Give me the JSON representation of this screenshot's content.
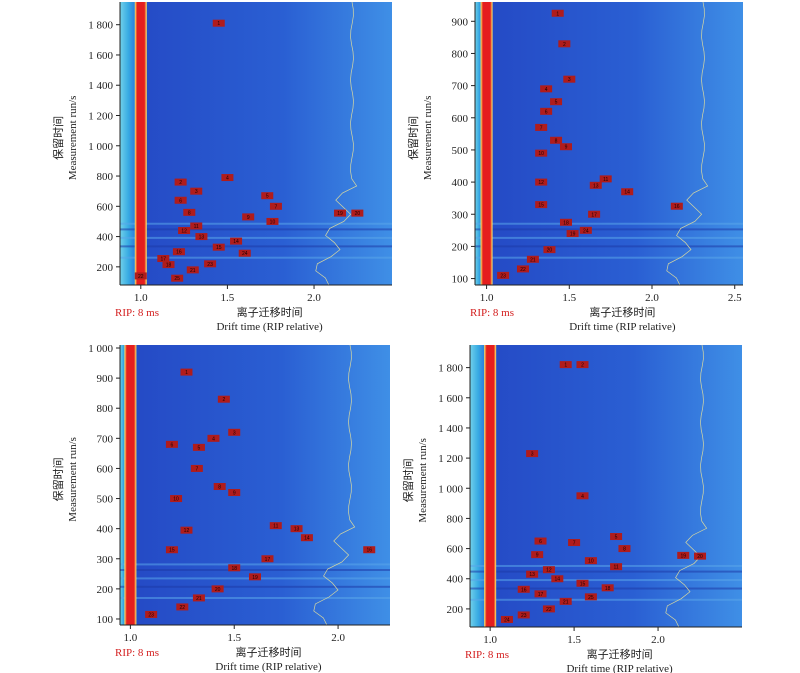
{
  "chart_data": [
    {
      "type": "heatmap",
      "xlabel_cn": "离子迁移时间",
      "xlabel_en": "Drift time (RIP relative)",
      "ylabel_cn": "保留时间",
      "ylabel_en": "Measurement run/s",
      "rip_label": "RIP: 8 ms",
      "x_range": [
        0.88,
        2.45
      ],
      "y_range": [
        80,
        1950
      ],
      "x_ticks": [
        "1.0",
        "1.5",
        "2.0"
      ],
      "x_tick_values": [
        1.0,
        1.5,
        2.0
      ],
      "y_ticks": [
        "200",
        "400",
        "600",
        "800",
        "1 000",
        "1 200",
        "1 400",
        "1 600",
        "1 800"
      ],
      "y_tick_values": [
        200,
        400,
        600,
        800,
        1000,
        1200,
        1400,
        1600,
        1800
      ],
      "peaks": [
        {
          "label": "1",
          "x": 1.45,
          "y": 1810
        },
        {
          "label": "2",
          "x": 1.23,
          "y": 760
        },
        {
          "label": "3",
          "x": 1.32,
          "y": 700
        },
        {
          "label": "4",
          "x": 1.5,
          "y": 790
        },
        {
          "label": "5",
          "x": 1.73,
          "y": 670
        },
        {
          "label": "6",
          "x": 1.23,
          "y": 640
        },
        {
          "label": "7",
          "x": 1.78,
          "y": 600
        },
        {
          "label": "8",
          "x": 1.28,
          "y": 560
        },
        {
          "label": "9",
          "x": 1.62,
          "y": 530
        },
        {
          "label": "10",
          "x": 1.76,
          "y": 500
        },
        {
          "label": "11",
          "x": 1.32,
          "y": 470
        },
        {
          "label": "12",
          "x": 1.25,
          "y": 440
        },
        {
          "label": "13",
          "x": 1.35,
          "y": 400
        },
        {
          "label": "14",
          "x": 1.55,
          "y": 370
        },
        {
          "label": "15",
          "x": 1.45,
          "y": 330
        },
        {
          "label": "16",
          "x": 1.22,
          "y": 300
        },
        {
          "label": "17",
          "x": 1.13,
          "y": 255
        },
        {
          "label": "18",
          "x": 1.16,
          "y": 215
        },
        {
          "label": "19",
          "x": 2.15,
          "y": 555
        },
        {
          "label": "20",
          "x": 2.25,
          "y": 555
        },
        {
          "label": "21",
          "x": 1.3,
          "y": 180
        },
        {
          "label": "22",
          "x": 1.0,
          "y": 140
        },
        {
          "label": "23",
          "x": 1.4,
          "y": 220
        },
        {
          "label": "24",
          "x": 1.6,
          "y": 290
        },
        {
          "label": "25",
          "x": 1.21,
          "y": 125
        }
      ]
    },
    {
      "type": "heatmap",
      "xlabel_cn": "离子迁移时间",
      "xlabel_en": "Drift time (RIP relative)",
      "ylabel_cn": "保留时间",
      "ylabel_en": "Measurement run/s",
      "rip_label": "RIP: 8 ms",
      "x_range": [
        0.93,
        2.55
      ],
      "y_range": [
        80,
        960
      ],
      "x_ticks": [
        "1.0",
        "1.5",
        "2.0",
        "2.5"
      ],
      "x_tick_values": [
        1.0,
        1.5,
        2.0,
        2.5
      ],
      "y_ticks": [
        "100",
        "200",
        "300",
        "400",
        "500",
        "600",
        "700",
        "800",
        "900"
      ],
      "y_tick_values": [
        100,
        200,
        300,
        400,
        500,
        600,
        700,
        800,
        900
      ],
      "peaks": [
        {
          "label": "1",
          "x": 1.43,
          "y": 925
        },
        {
          "label": "2",
          "x": 1.47,
          "y": 830
        },
        {
          "label": "3",
          "x": 1.5,
          "y": 720
        },
        {
          "label": "4",
          "x": 1.36,
          "y": 690
        },
        {
          "label": "5",
          "x": 1.42,
          "y": 650
        },
        {
          "label": "6",
          "x": 1.36,
          "y": 620
        },
        {
          "label": "7",
          "x": 1.33,
          "y": 570
        },
        {
          "label": "8",
          "x": 1.42,
          "y": 530
        },
        {
          "label": "9",
          "x": 1.48,
          "y": 510
        },
        {
          "label": "10",
          "x": 1.33,
          "y": 490
        },
        {
          "label": "11",
          "x": 1.72,
          "y": 410
        },
        {
          "label": "12",
          "x": 1.33,
          "y": 400
        },
        {
          "label": "13",
          "x": 1.66,
          "y": 390
        },
        {
          "label": "14",
          "x": 1.85,
          "y": 370
        },
        {
          "label": "15",
          "x": 1.33,
          "y": 330
        },
        {
          "label": "16",
          "x": 2.15,
          "y": 325
        },
        {
          "label": "17",
          "x": 1.65,
          "y": 300
        },
        {
          "label": "18",
          "x": 1.48,
          "y": 275
        },
        {
          "label": "19",
          "x": 1.52,
          "y": 240
        },
        {
          "label": "20",
          "x": 1.38,
          "y": 190
        },
        {
          "label": "21",
          "x": 1.28,
          "y": 160
        },
        {
          "label": "22",
          "x": 1.22,
          "y": 130
        },
        {
          "label": "23",
          "x": 1.1,
          "y": 110
        },
        {
          "label": "24",
          "x": 1.6,
          "y": 250
        }
      ]
    },
    {
      "type": "heatmap",
      "xlabel_cn": "离子迁移时间",
      "xlabel_en": "Drift time (RIP relative)",
      "ylabel_cn": "保留时间",
      "ylabel_en": "Measurement run/s",
      "rip_label": "RIP: 8 ms",
      "x_range": [
        0.95,
        2.25
      ],
      "y_range": [
        80,
        1010
      ],
      "x_ticks": [
        "1.0",
        "1.5",
        "2.0"
      ],
      "x_tick_values": [
        1.0,
        1.5,
        2.0
      ],
      "y_ticks": [
        "100",
        "200",
        "300",
        "400",
        "500",
        "600",
        "700",
        "800",
        "900",
        "1 000"
      ],
      "y_tick_values": [
        100,
        200,
        300,
        400,
        500,
        600,
        700,
        800,
        900,
        1000
      ],
      "peaks": [
        {
          "label": "1",
          "x": 1.27,
          "y": 920
        },
        {
          "label": "2",
          "x": 1.45,
          "y": 830
        },
        {
          "label": "3",
          "x": 1.5,
          "y": 720
        },
        {
          "label": "4",
          "x": 1.4,
          "y": 700
        },
        {
          "label": "5",
          "x": 1.33,
          "y": 670
        },
        {
          "label": "6",
          "x": 1.2,
          "y": 680
        },
        {
          "label": "7",
          "x": 1.32,
          "y": 600
        },
        {
          "label": "8",
          "x": 1.43,
          "y": 540
        },
        {
          "label": "9",
          "x": 1.5,
          "y": 520
        },
        {
          "label": "10",
          "x": 1.22,
          "y": 500
        },
        {
          "label": "11",
          "x": 1.7,
          "y": 410
        },
        {
          "label": "12",
          "x": 1.27,
          "y": 395
        },
        {
          "label": "13",
          "x": 1.8,
          "y": 400
        },
        {
          "label": "14",
          "x": 1.85,
          "y": 370
        },
        {
          "label": "15",
          "x": 1.2,
          "y": 330
        },
        {
          "label": "16",
          "x": 2.15,
          "y": 330
        },
        {
          "label": "17",
          "x": 1.66,
          "y": 300
        },
        {
          "label": "18",
          "x": 1.5,
          "y": 270
        },
        {
          "label": "19",
          "x": 1.6,
          "y": 240
        },
        {
          "label": "20",
          "x": 1.42,
          "y": 200
        },
        {
          "label": "21",
          "x": 1.33,
          "y": 170
        },
        {
          "label": "22",
          "x": 1.25,
          "y": 140
        },
        {
          "label": "23",
          "x": 1.1,
          "y": 115
        }
      ]
    },
    {
      "type": "heatmap",
      "xlabel_cn": "离子迁移时间",
      "xlabel_en": "Drift time (RIP relative)",
      "ylabel_cn": "保留时间",
      "ylabel_en": "Measurement run/s",
      "rip_label": "RIP: 8 ms",
      "x_range": [
        0.88,
        2.5
      ],
      "y_range": [
        80,
        1950
      ],
      "x_ticks": [
        "1.0",
        "1.5",
        "2.0"
      ],
      "x_tick_values": [
        1.0,
        1.5,
        2.0
      ],
      "y_ticks": [
        "200",
        "400",
        "600",
        "800",
        "1 000",
        "1 200",
        "1 400",
        "1 600",
        "1 800"
      ],
      "y_tick_values": [
        200,
        400,
        600,
        800,
        1000,
        1200,
        1400,
        1600,
        1800
      ],
      "peaks": [
        {
          "label": "1",
          "x": 1.45,
          "y": 1820
        },
        {
          "label": "2",
          "x": 1.55,
          "y": 1820
        },
        {
          "label": "3",
          "x": 1.25,
          "y": 1230
        },
        {
          "label": "4",
          "x": 1.55,
          "y": 950
        },
        {
          "label": "5",
          "x": 1.75,
          "y": 680
        },
        {
          "label": "6",
          "x": 1.3,
          "y": 650
        },
        {
          "label": "7",
          "x": 1.5,
          "y": 640
        },
        {
          "label": "8",
          "x": 1.8,
          "y": 600
        },
        {
          "label": "9",
          "x": 1.28,
          "y": 560
        },
        {
          "label": "10",
          "x": 1.6,
          "y": 520
        },
        {
          "label": "11",
          "x": 1.75,
          "y": 480
        },
        {
          "label": "12",
          "x": 1.35,
          "y": 460
        },
        {
          "label": "13",
          "x": 1.25,
          "y": 430
        },
        {
          "label": "14",
          "x": 1.4,
          "y": 400
        },
        {
          "label": "15",
          "x": 1.55,
          "y": 370
        },
        {
          "label": "16",
          "x": 1.2,
          "y": 330
        },
        {
          "label": "17",
          "x": 1.3,
          "y": 300
        },
        {
          "label": "18",
          "x": 1.7,
          "y": 340
        },
        {
          "label": "19",
          "x": 2.15,
          "y": 555
        },
        {
          "label": "20",
          "x": 2.25,
          "y": 550
        },
        {
          "label": "21",
          "x": 1.45,
          "y": 250
        },
        {
          "label": "22",
          "x": 1.35,
          "y": 200
        },
        {
          "label": "23",
          "x": 1.2,
          "y": 160
        },
        {
          "label": "24",
          "x": 1.1,
          "y": 130
        },
        {
          "label": "25",
          "x": 1.6,
          "y": 280
        }
      ]
    }
  ]
}
